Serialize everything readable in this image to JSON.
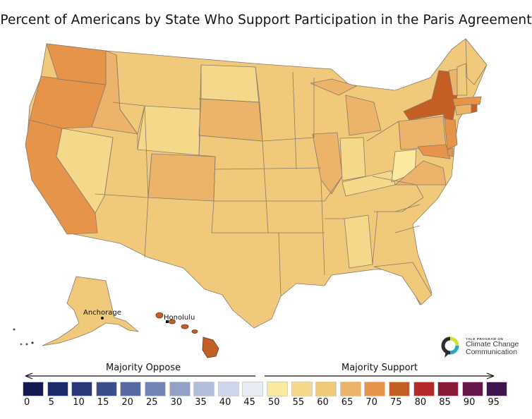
{
  "title": "Percent of Americans by State Who Support Participation in the Paris Agreement",
  "map_labels": {
    "anchorage": "Anchorage",
    "honolulu": "Honolulu"
  },
  "logo": {
    "line1": "YALE PROGRAM ON",
    "line2": "Climate Change",
    "line3": "Communication",
    "colors": [
      "#c9c9c9",
      "#d6de3a",
      "#2aa7c6",
      "#2c2c2c"
    ]
  },
  "legend": {
    "oppose_label": "Majority Oppose",
    "support_label": "Majority Support",
    "ticks": [
      "0",
      "5",
      "10",
      "15",
      "20",
      "25",
      "30",
      "35",
      "40",
      "45",
      "50",
      "55",
      "60",
      "65",
      "70",
      "75",
      "80",
      "85",
      "90",
      "95"
    ],
    "colors": [
      "#141b54",
      "#1d2a6b",
      "#2a3a7a",
      "#3a4e8c",
      "#5868a3",
      "#7483b6",
      "#93a0c8",
      "#b2bddb",
      "#cdd6ea",
      "#e6ebf4",
      "#fbe9a0",
      "#f5d88a",
      "#f0c97a",
      "#ebb46a",
      "#e6944a",
      "#c55e25",
      "#b7282a",
      "#8b1a38",
      "#66164a",
      "#401450"
    ]
  },
  "map_colors": {
    "fill_55": "#f5d88a",
    "fill_50": "#fbe9a0",
    "fill_60": "#f0c97a",
    "fill_65": "#ebb46a",
    "fill_70": "#e6944a",
    "fill_75": "#c55e25",
    "border": "#8a7a6a"
  }
}
